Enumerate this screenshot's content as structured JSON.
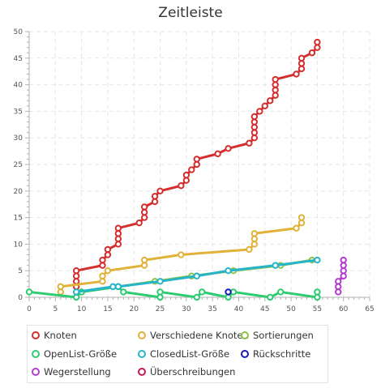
{
  "chart_data": {
    "type": "line",
    "title": "Zeitleiste",
    "xlim": [
      0,
      65
    ],
    "ylim": [
      0,
      50
    ],
    "x_ticks": [
      "0",
      "5",
      "10",
      "15",
      "20",
      "25",
      "30",
      "35",
      "40",
      "45",
      "50",
      "55",
      "60",
      "65"
    ],
    "y_ticks": [
      "0",
      "5",
      "10",
      "15",
      "20",
      "25",
      "30",
      "35",
      "40",
      "45",
      "50"
    ],
    "grid": true,
    "legend_position": "bottom",
    "series": [
      {
        "name": "Knoten",
        "color": "#d32f2f",
        "points": [
          [
            9,
            2
          ],
          [
            9,
            3
          ],
          [
            9,
            4
          ],
          [
            9,
            5
          ],
          [
            14,
            6
          ],
          [
            14,
            7
          ],
          [
            15,
            8
          ],
          [
            15,
            9
          ],
          [
            17,
            10
          ],
          [
            17,
            11
          ],
          [
            17,
            12
          ],
          [
            17,
            13
          ],
          [
            21,
            14
          ],
          [
            22,
            15
          ],
          [
            22,
            16
          ],
          [
            22,
            17
          ],
          [
            24,
            18
          ],
          [
            24,
            19
          ],
          [
            25,
            20
          ],
          [
            29,
            21
          ],
          [
            30,
            22
          ],
          [
            30,
            23
          ],
          [
            31,
            24
          ],
          [
            32,
            25
          ],
          [
            32,
            26
          ],
          [
            36,
            27
          ],
          [
            38,
            28
          ],
          [
            42,
            29
          ],
          [
            43,
            30
          ],
          [
            43,
            31
          ],
          [
            43,
            32
          ],
          [
            43,
            33
          ],
          [
            43,
            34
          ],
          [
            44,
            35
          ],
          [
            45,
            36
          ],
          [
            46,
            37
          ],
          [
            47,
            38
          ],
          [
            47,
            39
          ],
          [
            47,
            40
          ],
          [
            47,
            41
          ],
          [
            51,
            42
          ],
          [
            52,
            43
          ],
          [
            52,
            44
          ],
          [
            52,
            45
          ],
          [
            54,
            46
          ],
          [
            55,
            47
          ],
          [
            55,
            48
          ]
        ]
      },
      {
        "name": "Verschiedene Knoten",
        "color": "#e0b23a",
        "points": [
          [
            6,
            1
          ],
          [
            6,
            2
          ],
          [
            14,
            3
          ],
          [
            14,
            4
          ],
          [
            15,
            5
          ],
          [
            22,
            6
          ],
          [
            22,
            7
          ],
          [
            29,
            8
          ],
          [
            42,
            9
          ],
          [
            43,
            10
          ],
          [
            43,
            11
          ],
          [
            43,
            12
          ],
          [
            51,
            13
          ],
          [
            52,
            14
          ],
          [
            52,
            15
          ]
        ]
      },
      {
        "name": "Sortierungen",
        "color": "#8bc34a",
        "points": [
          [
            10,
            1
          ],
          [
            17,
            2
          ],
          [
            24,
            3
          ],
          [
            31,
            4
          ],
          [
            39,
            5
          ],
          [
            48,
            6
          ],
          [
            54,
            7
          ]
        ]
      },
      {
        "name": "OpenList-Größe",
        "color": "#2ecc71",
        "points": [
          [
            0,
            1
          ],
          [
            9,
            0
          ],
          [
            10,
            1
          ],
          [
            17,
            2
          ],
          [
            18,
            1
          ],
          [
            25,
            0
          ],
          [
            25,
            1
          ],
          [
            32,
            0
          ],
          [
            33,
            1
          ],
          [
            38,
            0
          ],
          [
            39,
            1
          ],
          [
            46,
            0
          ],
          [
            48,
            1
          ],
          [
            55,
            0
          ],
          [
            55,
            1
          ]
        ]
      },
      {
        "name": "ClosedList-Größe",
        "color": "#26b5c8",
        "points": [
          [
            9,
            1
          ],
          [
            16,
            2
          ],
          [
            17,
            2
          ],
          [
            25,
            3
          ],
          [
            32,
            4
          ],
          [
            38,
            5
          ],
          [
            47,
            6
          ],
          [
            55,
            7
          ]
        ]
      },
      {
        "name": "Rückschritte",
        "color": "#1a1ab3",
        "points": [
          [
            38,
            1
          ]
        ]
      },
      {
        "name": "Wegerstellung",
        "color": "#b23ccf",
        "points": [
          [
            59,
            1
          ],
          [
            59,
            2
          ],
          [
            59,
            3
          ],
          [
            60,
            4
          ],
          [
            60,
            5
          ],
          [
            60,
            6
          ],
          [
            60,
            7
          ]
        ]
      },
      {
        "name": "Überschreibungen",
        "color": "#c2185b",
        "points": []
      }
    ]
  }
}
